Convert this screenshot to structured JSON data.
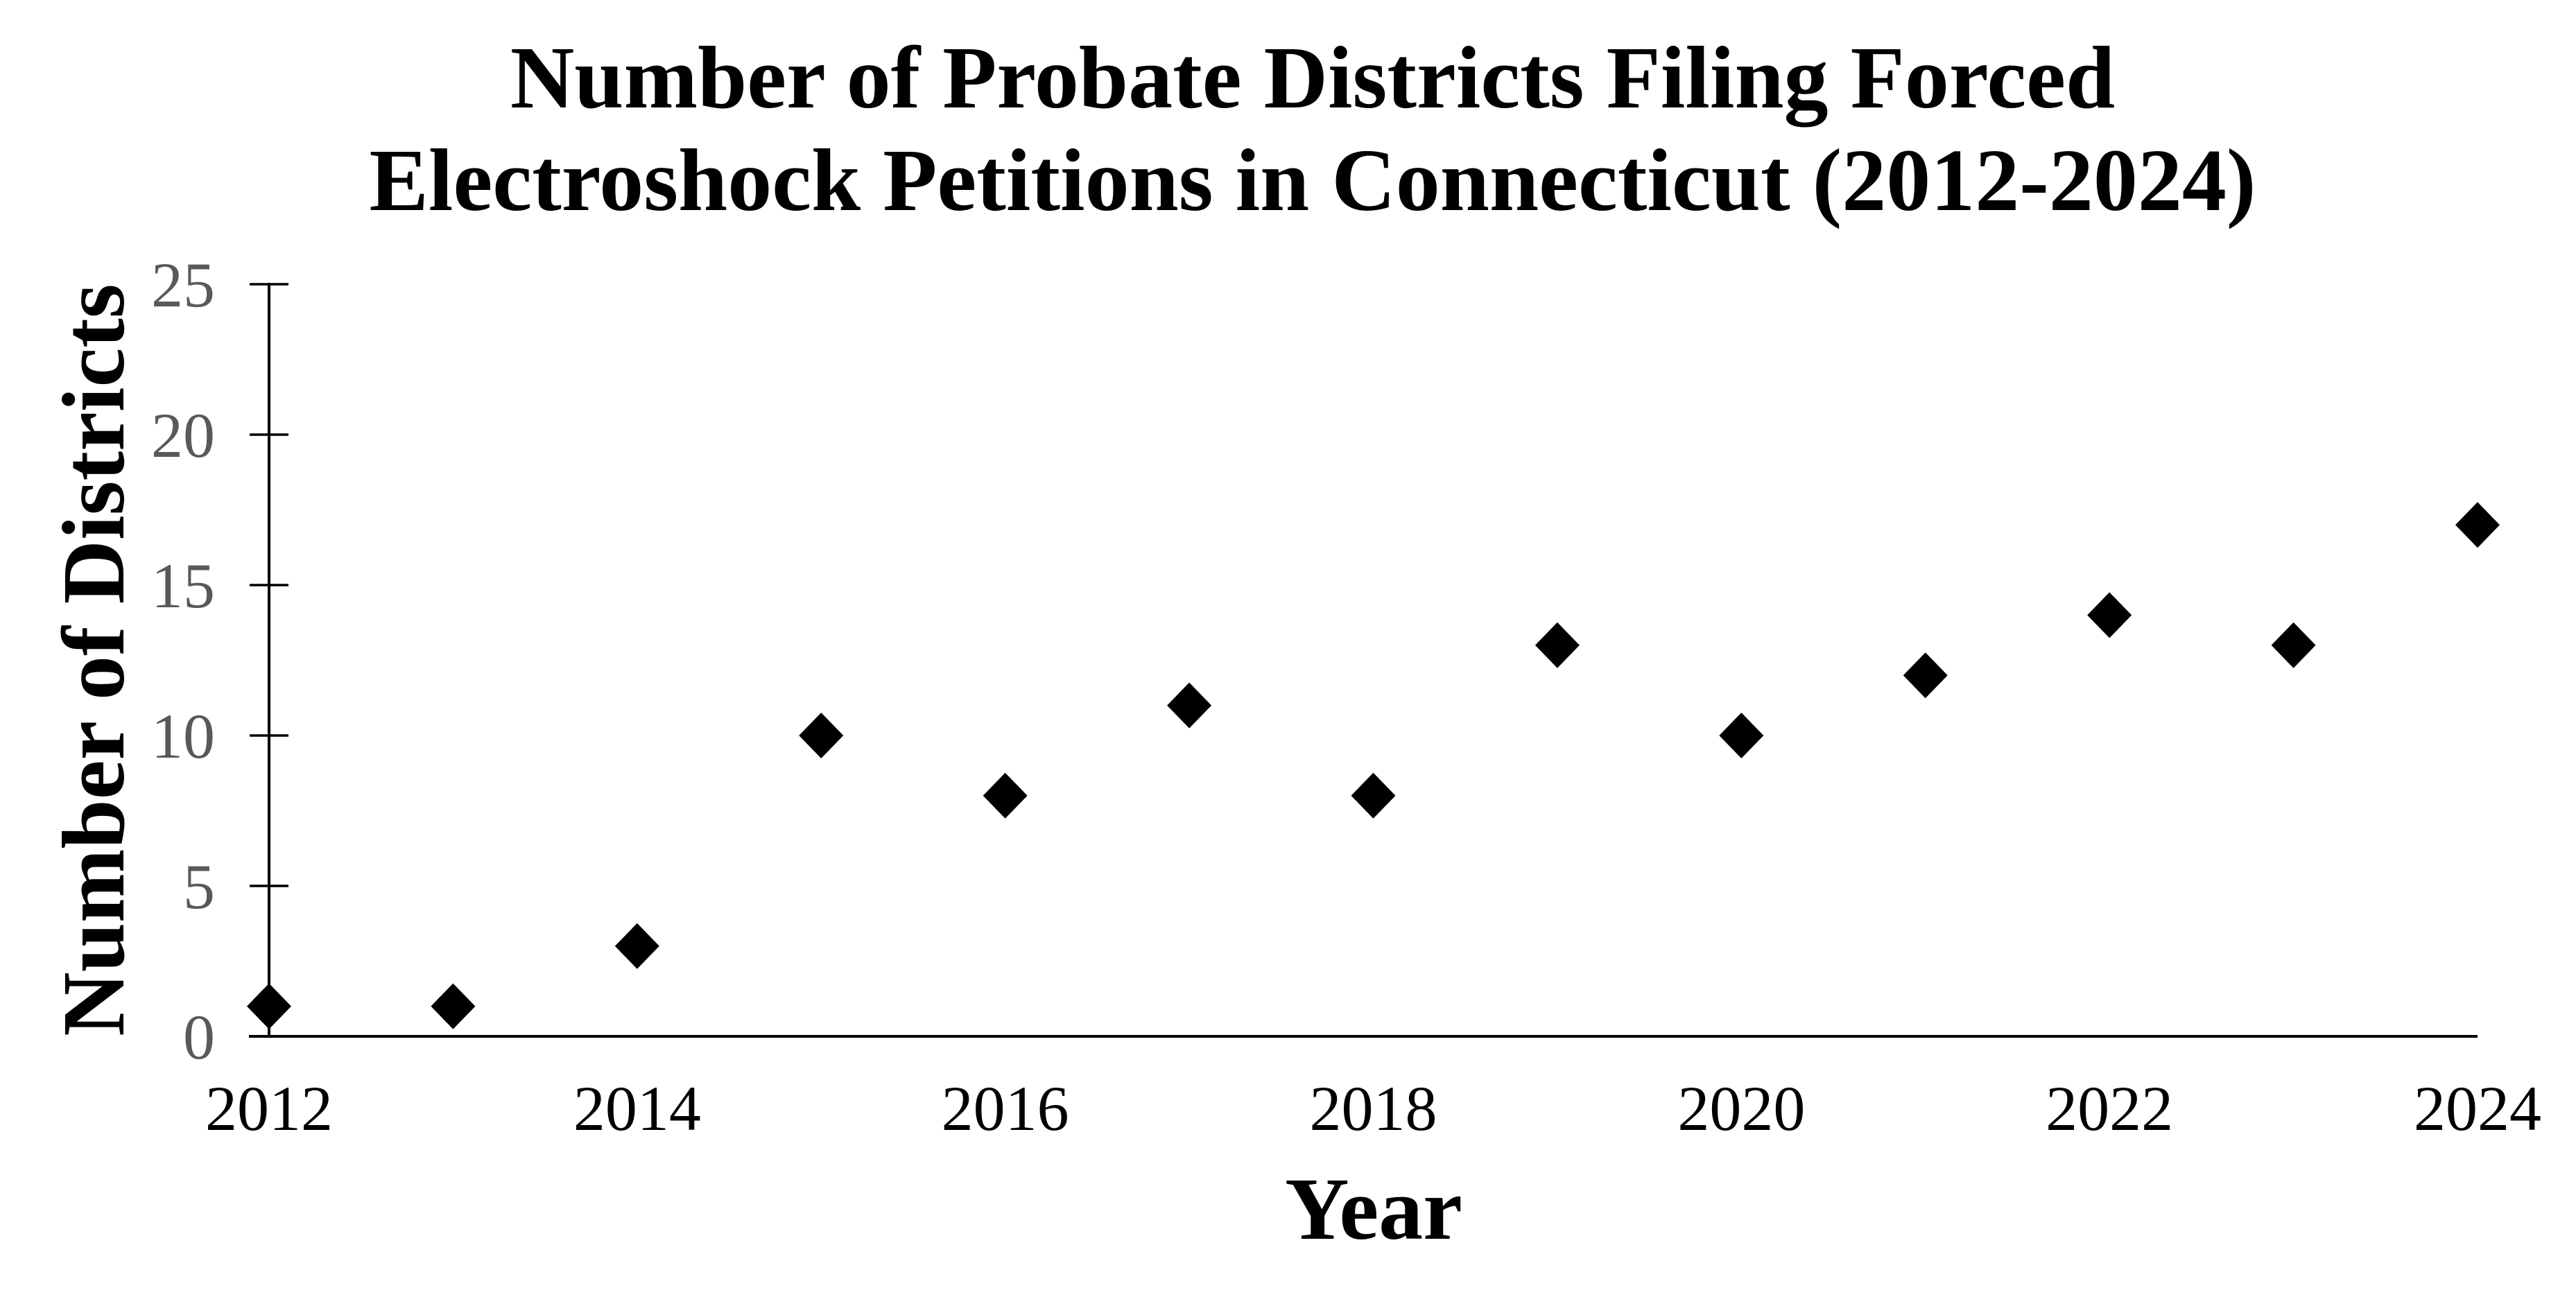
{
  "page": {
    "background": "#ffffff"
  },
  "chart_data": {
    "type": "scatter",
    "title": "Number of Probate Districts Filing Forced Electroshock Petitions in Connecticut (2012-2024)",
    "title_lines": [
      "Number of Probate Districts Filing Forced",
      "Electroshock Petitions in Connecticut (2012-2024)"
    ],
    "xlabel": "Year",
    "ylabel": "Number of Districts",
    "x": [
      2012,
      2013,
      2014,
      2015,
      2016,
      2017,
      2018,
      2019,
      2020,
      2021,
      2022,
      2023,
      2024
    ],
    "y": [
      1,
      1,
      3,
      10,
      8,
      11,
      8,
      13,
      10,
      12,
      14,
      13,
      17
    ],
    "xlim": [
      2012,
      2024
    ],
    "ylim": [
      0,
      25
    ],
    "x_ticks": [
      2012,
      2014,
      2016,
      2018,
      2020,
      2022,
      2024
    ],
    "y_ticks": [
      0,
      5,
      10,
      15,
      20,
      25
    ],
    "marker": "diamond",
    "grid": false,
    "legend": false,
    "colors": {
      "marker": "#000000",
      "axis_line": "#000000",
      "y_tick_label": "#595959",
      "x_tick_label": "#000000",
      "title_text": "#000000"
    }
  }
}
